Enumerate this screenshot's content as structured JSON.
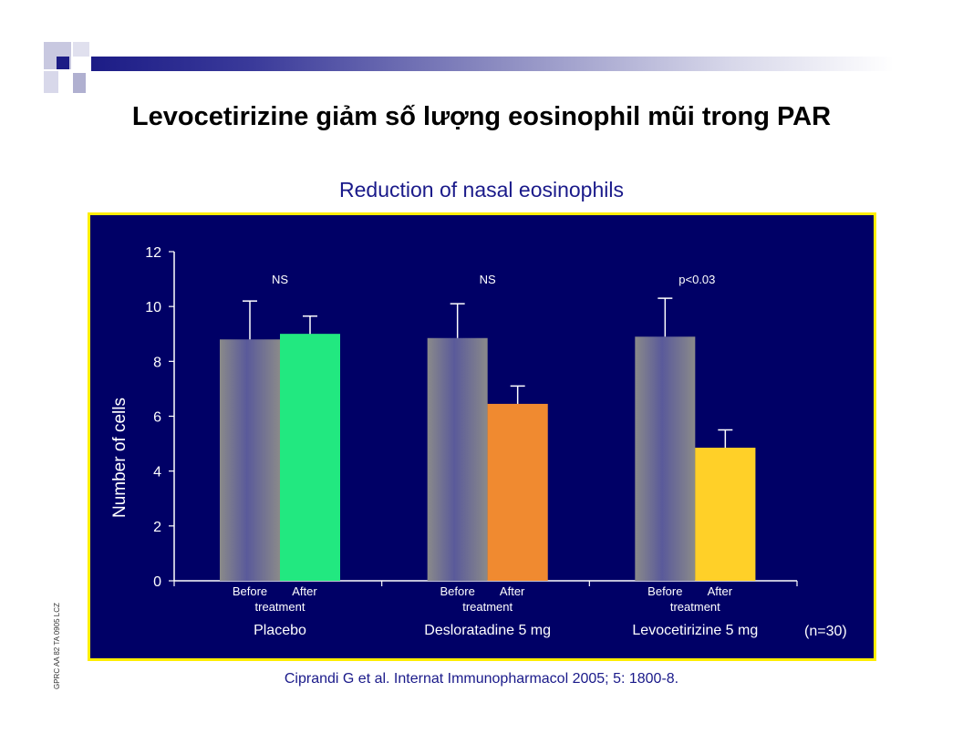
{
  "slide": {
    "title": "Levocetirizine giảm số lượng eosinophil mũi trong PAR",
    "citation": "Ciprandi G et al. Internat Immunopharmacol 2005; 5: 1800-8.",
    "side_code": "GPRC AA 82 TA 0905 LCZ"
  },
  "colors": {
    "panel_bg": "#000066",
    "panel_border": "#ffee00",
    "title_blue": "#1a1a8a",
    "before_bar": "#6e6e96",
    "placebo_after": "#22e880",
    "deslo_after": "#f08a30",
    "levo_after": "#ffd028"
  },
  "chart_data": {
    "type": "bar",
    "title": "Reduction of nasal eosinophils",
    "ylabel": "Number of cells",
    "ylim": [
      0,
      12
    ],
    "yticks": [
      "0",
      "2",
      "4",
      "6",
      "8",
      "10",
      "12"
    ],
    "sample_note": "(n=30)",
    "sublabels": {
      "before": "Before",
      "after": "After",
      "treatment": "treatment"
    },
    "groups": [
      {
        "name": "Placebo",
        "before": 8.8,
        "before_err": 1.4,
        "after": 9.0,
        "after_err": 0.65,
        "significance": "NS",
        "after_color": "#22e880"
      },
      {
        "name": "Desloratadine 5 mg",
        "before": 8.85,
        "before_err": 1.25,
        "after": 6.45,
        "after_err": 0.65,
        "significance": "NS",
        "after_color": "#f08a30"
      },
      {
        "name": "Levocetirizine 5 mg",
        "before": 8.9,
        "before_err": 1.4,
        "after": 4.85,
        "after_err": 0.65,
        "significance": "p<0.03",
        "after_color": "#ffd028"
      }
    ]
  }
}
